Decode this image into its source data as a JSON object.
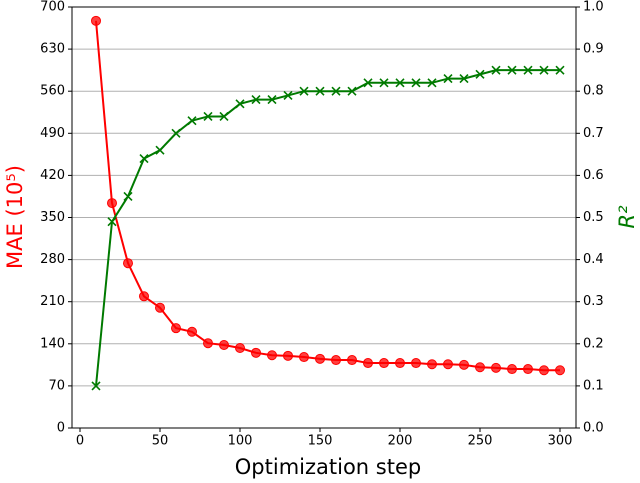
{
  "chart_data": {
    "type": "line",
    "xlabel": "Optimization step",
    "ylabel": "MAE (10⁵)",
    "y2label": "R²",
    "x": [
      10,
      20,
      30,
      40,
      50,
      60,
      70,
      80,
      90,
      100,
      110,
      120,
      130,
      140,
      150,
      160,
      170,
      180,
      190,
      200,
      210,
      220,
      230,
      240,
      250,
      260,
      270,
      280,
      290,
      300
    ],
    "series": [
      {
        "name": "MAE",
        "color": "#ff0000",
        "marker": "o",
        "axis": "y",
        "values": [
          677,
          374,
          274,
          219,
          200,
          166,
          160,
          141,
          138,
          133,
          125,
          121,
          120,
          118,
          115,
          113,
          113,
          108,
          108,
          108,
          108,
          106,
          106,
          105,
          101,
          100,
          98,
          98,
          96,
          96
        ]
      },
      {
        "name": "R²",
        "color": "#007a00",
        "marker": "x",
        "axis": "y2",
        "values": [
          0.1,
          0.49,
          0.55,
          0.64,
          0.66,
          0.7,
          0.73,
          0.74,
          0.74,
          0.77,
          0.78,
          0.78,
          0.79,
          0.8,
          0.8,
          0.8,
          0.8,
          0.82,
          0.82,
          0.82,
          0.82,
          0.82,
          0.83,
          0.83,
          0.84,
          0.85,
          0.85,
          0.85,
          0.85,
          0.85
        ]
      }
    ],
    "xlim": [
      -5,
      310
    ],
    "xticks": [
      0,
      50,
      100,
      150,
      200,
      250,
      300
    ],
    "ylim": [
      0,
      700
    ],
    "yticks": [
      0,
      70,
      140,
      210,
      280,
      350,
      420,
      490,
      560,
      630,
      700
    ],
    "y2lim": [
      0,
      1
    ],
    "y2ticks": [
      {
        "value": 0,
        "label": "0.0"
      },
      0.1,
      0.2,
      0.3,
      0.4,
      0.5,
      0.6,
      0.7,
      0.8,
      0.9,
      {
        "value": 1,
        "label": "1.0"
      }
    ],
    "grid": true
  }
}
